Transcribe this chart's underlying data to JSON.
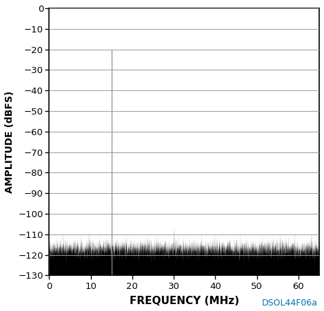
{
  "xlabel": "FREQUENCY (MHz)",
  "ylabel": "AMPLITUDE (dBFS)",
  "watermark": "DSOL44F06a",
  "watermark_color": "#0070b0",
  "xlim": [
    0,
    65
  ],
  "ylim": [
    -130,
    0
  ],
  "yticks": [
    0,
    -10,
    -20,
    -30,
    -40,
    -50,
    -60,
    -70,
    -80,
    -90,
    -100,
    -110,
    -120,
    -130
  ],
  "xticks": [
    0,
    10,
    20,
    30,
    40,
    50,
    60
  ],
  "noise_floor_mean": -117,
  "noise_floor_std": 2.5,
  "main_spike_freq": 15.0,
  "main_spike_amp": -20.5,
  "spurious_spikes": [
    {
      "freq": 9.5,
      "amp": -108
    },
    {
      "freq": 19.5,
      "amp": -114
    },
    {
      "freq": 30.0,
      "amp": -106
    },
    {
      "freq": 55.5,
      "amp": -109
    },
    {
      "freq": 57.5,
      "amp": -111
    },
    {
      "freq": 63.0,
      "amp": -110
    }
  ],
  "background_color": "#ffffff",
  "plot_bg_color": "#ffffff",
  "grid_color": "#999999",
  "signal_color": "#000000",
  "spike_color": "#909090",
  "xlabel_fontsize": 11,
  "ylabel_fontsize": 10,
  "tick_fontsize": 9.5,
  "watermark_fontsize": 9
}
